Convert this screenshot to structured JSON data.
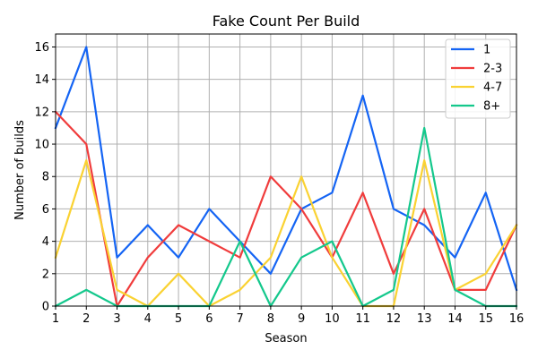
{
  "chart_data": {
    "type": "line",
    "title": "Fake Count Per Build",
    "xlabel": "Season",
    "ylabel": "Number of builds",
    "x": [
      1,
      2,
      3,
      4,
      5,
      6,
      7,
      8,
      9,
      10,
      11,
      12,
      13,
      14,
      15,
      16
    ],
    "xlim": [
      1,
      16
    ],
    "ylim": [
      0,
      16.8
    ],
    "xticks": [
      1,
      2,
      3,
      4,
      5,
      6,
      7,
      8,
      9,
      10,
      11,
      12,
      13,
      14,
      15,
      16
    ],
    "yticks": [
      0,
      2,
      4,
      6,
      8,
      10,
      12,
      14,
      16
    ],
    "grid": true,
    "legend_position": "top-right",
    "series": [
      {
        "name": "1",
        "color": "#1464f4",
        "values": [
          11,
          16,
          3,
          5,
          3,
          6,
          4,
          2,
          6,
          7,
          13,
          6,
          5,
          3,
          7,
          1
        ]
      },
      {
        "name": "2-3",
        "color": "#f03c3c",
        "values": [
          12,
          10,
          0,
          3,
          5,
          4,
          3,
          8,
          6,
          3,
          7,
          2,
          6,
          1,
          1,
          5
        ]
      },
      {
        "name": "4-7",
        "color": "#fad232",
        "values": [
          3,
          9,
          1,
          0,
          2,
          0,
          1,
          3,
          8,
          3,
          0,
          0,
          9,
          1,
          2,
          5
        ]
      },
      {
        "name": "8+",
        "color": "#14c88c",
        "values": [
          0,
          1,
          0,
          0,
          0,
          0,
          4,
          0,
          3,
          4,
          0,
          1,
          11,
          1,
          0,
          0
        ]
      }
    ]
  }
}
